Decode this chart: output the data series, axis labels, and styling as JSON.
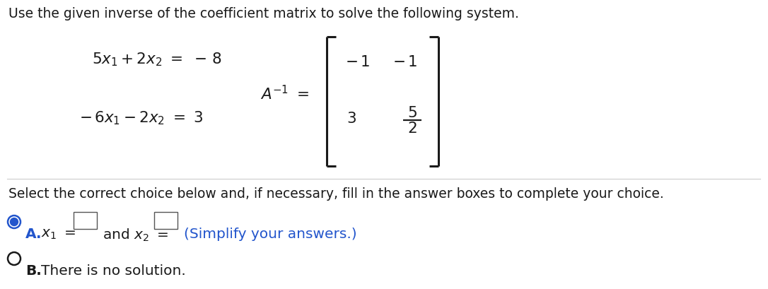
{
  "title_text": "Use the given inverse of the coefficient matrix to solve the following system.",
  "select_text": "Select the correct choice below and, if necessary, fill in the answer boxes to complete your choice.",
  "choice_b_text": "There is no solution.",
  "bg_color": "#ffffff",
  "text_color": "#1a1a1a",
  "blue_color": "#2255cc",
  "line_color": "#cccccc",
  "title_fontsize": 13.5,
  "body_fontsize": 14.5,
  "choice_fontsize": 14.5
}
